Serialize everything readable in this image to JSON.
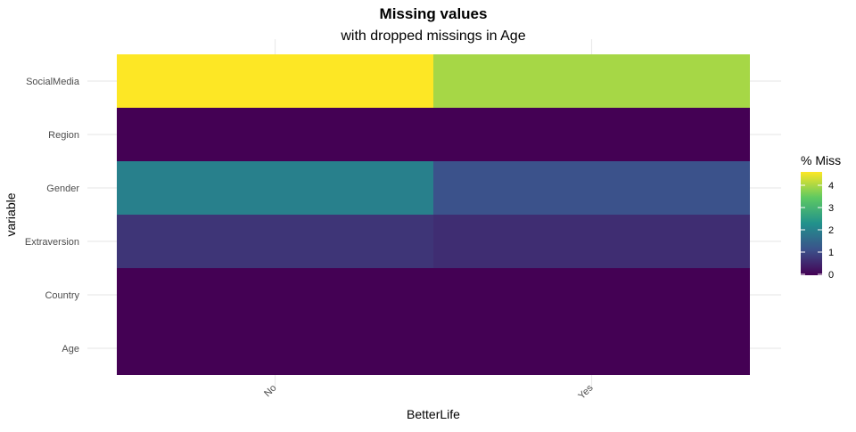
{
  "chart_data": {
    "type": "heatmap",
    "title": "Missing values",
    "subtitle": "with dropped missings in Age",
    "xlabel": "BetterLife",
    "ylabel": "variable",
    "x_categories": [
      "No",
      "Yes"
    ],
    "y_categories": [
      "SocialMedia",
      "Region",
      "Gender",
      "Extraversion",
      "Country",
      "Age"
    ],
    "values": [
      [
        4.4,
        3.8
      ],
      [
        0.0,
        0.0
      ],
      [
        1.9,
        1.1
      ],
      [
        0.7,
        0.6
      ],
      [
        0.0,
        0.0
      ],
      [
        0.0,
        0.0
      ]
    ],
    "color_scale": "viridis",
    "value_range": [
      0,
      4.4
    ],
    "legend": {
      "title": "% Miss",
      "ticks": [
        0,
        1,
        2,
        3,
        4
      ],
      "position": "right"
    },
    "grid": true
  }
}
